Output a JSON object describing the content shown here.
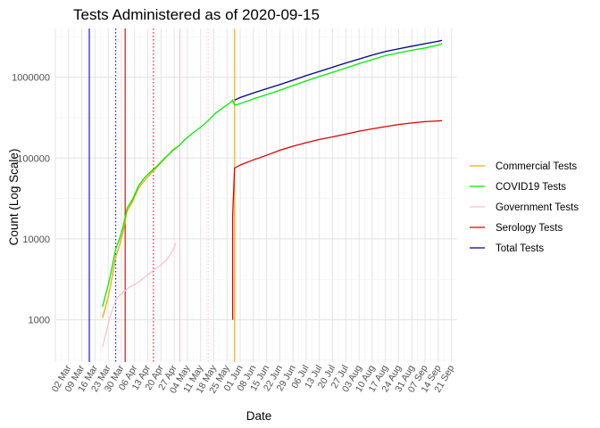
{
  "chart_data": {
    "type": "line",
    "title": "Tests Administered as of 2020-09-15",
    "xlabel": "Date",
    "ylabel": "Count (Log Scale)",
    "y_scale": "log",
    "ylim": [
      300,
      4000000
    ],
    "y_ticks": [
      {
        "value": 1000,
        "label": "1000"
      },
      {
        "value": 10000,
        "label": "10000"
      },
      {
        "value": 100000,
        "label": "100000"
      },
      {
        "value": 1000000,
        "label": "1000000"
      }
    ],
    "xlim": [
      "2020-02-24",
      "2020-09-24"
    ],
    "x_ticks": [
      {
        "date": "2020-03-02",
        "label": "02 Mar"
      },
      {
        "date": "2020-03-09",
        "label": "09 Mar"
      },
      {
        "date": "2020-03-16",
        "label": "16 Mar"
      },
      {
        "date": "2020-03-23",
        "label": "23 Mar"
      },
      {
        "date": "2020-03-30",
        "label": "30 Mar"
      },
      {
        "date": "2020-04-06",
        "label": "06 Apr"
      },
      {
        "date": "2020-04-13",
        "label": "13 Apr"
      },
      {
        "date": "2020-04-20",
        "label": "20 Apr"
      },
      {
        "date": "2020-04-27",
        "label": "27 Apr"
      },
      {
        "date": "2020-05-04",
        "label": "04 May"
      },
      {
        "date": "2020-05-11",
        "label": "11 May"
      },
      {
        "date": "2020-05-18",
        "label": "18 May"
      },
      {
        "date": "2020-05-25",
        "label": "25 May"
      },
      {
        "date": "2020-06-01",
        "label": "01 Jun"
      },
      {
        "date": "2020-06-08",
        "label": "08 Jun"
      },
      {
        "date": "2020-06-15",
        "label": "15 Jun"
      },
      {
        "date": "2020-06-22",
        "label": "22 Jun"
      },
      {
        "date": "2020-06-29",
        "label": "29 Jun"
      },
      {
        "date": "2020-07-06",
        "label": "06 Jul"
      },
      {
        "date": "2020-07-13",
        "label": "13 Jul"
      },
      {
        "date": "2020-07-20",
        "label": "20 Jul"
      },
      {
        "date": "2020-07-27",
        "label": "27 Jul"
      },
      {
        "date": "2020-08-03",
        "label": "03 Aug"
      },
      {
        "date": "2020-08-10",
        "label": "10 Aug"
      },
      {
        "date": "2020-08-17",
        "label": "17 Aug"
      },
      {
        "date": "2020-08-24",
        "label": "24 Aug"
      },
      {
        "date": "2020-08-31",
        "label": "31 Aug"
      },
      {
        "date": "2020-09-07",
        "label": "07 Sep"
      },
      {
        "date": "2020-09-14",
        "label": "14 Sep"
      },
      {
        "date": "2020-09-21",
        "label": "21 Sep"
      }
    ],
    "grid": true,
    "legend_position": "right",
    "vlines": [
      {
        "date": "2020-03-13",
        "color": "#0000ff",
        "style": "solid"
      },
      {
        "date": "2020-03-27",
        "color": "#0000ff",
        "style": "dotted"
      },
      {
        "date": "2020-04-01",
        "color": "#cc0000",
        "style": "solid"
      },
      {
        "date": "2020-04-16",
        "color": "#ff0000",
        "style": "dotted"
      },
      {
        "date": "2020-04-30",
        "color": "#ffc0cb",
        "style": "solid"
      },
      {
        "date": "2020-05-15",
        "color": "#ffc0cb",
        "style": "dotted"
      },
      {
        "date": "2020-05-29",
        "color": "#ffa500",
        "style": "solid"
      }
    ],
    "series": [
      {
        "name": "Commercial Tests",
        "color": "#ffa500",
        "points": [
          [
            "2020-03-20",
            1050
          ],
          [
            "2020-03-23",
            1900
          ],
          [
            "2020-03-25",
            3300
          ],
          [
            "2020-03-27",
            6000
          ],
          [
            "2020-03-29",
            8300
          ],
          [
            "2020-03-31",
            12500
          ],
          [
            "2020-04-02",
            22000
          ],
          [
            "2020-04-05",
            29000
          ],
          [
            "2020-04-08",
            42000
          ],
          [
            "2020-04-11",
            52000
          ],
          [
            "2020-04-14",
            62000
          ],
          [
            "2020-04-18",
            78000
          ],
          [
            "2020-04-22",
            98000
          ],
          [
            "2020-04-26",
            125000
          ],
          [
            "2020-04-28",
            135000
          ],
          [
            "2020-04-29",
            140000
          ]
        ]
      },
      {
        "name": "COVID19 Tests",
        "color": "#00ee00",
        "points": [
          [
            "2020-03-20",
            1450
          ],
          [
            "2020-03-23",
            2700
          ],
          [
            "2020-03-25",
            4400
          ],
          [
            "2020-03-27",
            7500
          ],
          [
            "2020-03-29",
            10000
          ],
          [
            "2020-03-31",
            14500
          ],
          [
            "2020-04-02",
            24000
          ],
          [
            "2020-04-05",
            31000
          ],
          [
            "2020-04-08",
            45000
          ],
          [
            "2020-04-11",
            56000
          ],
          [
            "2020-04-14",
            66000
          ],
          [
            "2020-04-18",
            80000
          ],
          [
            "2020-04-22",
            100000
          ],
          [
            "2020-04-26",
            122000
          ],
          [
            "2020-04-30",
            145000
          ],
          [
            "2020-05-03",
            172000
          ],
          [
            "2020-05-07",
            205000
          ],
          [
            "2020-05-11",
            240000
          ],
          [
            "2020-05-15",
            290000
          ],
          [
            "2020-05-19",
            360000
          ],
          [
            "2020-05-23",
            420000
          ],
          [
            "2020-05-27",
            490000
          ],
          [
            "2020-05-28",
            520000
          ],
          [
            "2020-05-29",
            450000
          ],
          [
            "2020-06-01",
            470000
          ],
          [
            "2020-06-08",
            540000
          ],
          [
            "2020-06-15",
            610000
          ],
          [
            "2020-06-22",
            690000
          ],
          [
            "2020-06-29",
            790000
          ],
          [
            "2020-07-06",
            900000
          ],
          [
            "2020-07-13",
            1020000
          ],
          [
            "2020-07-20",
            1150000
          ],
          [
            "2020-07-27",
            1300000
          ],
          [
            "2020-08-03",
            1470000
          ],
          [
            "2020-08-10",
            1650000
          ],
          [
            "2020-08-17",
            1850000
          ],
          [
            "2020-08-24",
            2000000
          ],
          [
            "2020-08-31",
            2150000
          ],
          [
            "2020-09-07",
            2300000
          ],
          [
            "2020-09-14",
            2500000
          ],
          [
            "2020-09-16",
            2600000
          ]
        ]
      },
      {
        "name": "Government Tests",
        "color": "#ffc0cb",
        "points": [
          [
            "2020-03-20",
            460
          ],
          [
            "2020-03-22",
            700
          ],
          [
            "2020-03-24",
            1100
          ],
          [
            "2020-03-26",
            1500
          ],
          [
            "2020-03-28",
            1900
          ],
          [
            "2020-03-31",
            2200
          ],
          [
            "2020-04-03",
            2500
          ],
          [
            "2020-04-07",
            2800
          ],
          [
            "2020-04-11",
            3300
          ],
          [
            "2020-04-15",
            3900
          ],
          [
            "2020-04-19",
            4600
          ],
          [
            "2020-04-23",
            5500
          ],
          [
            "2020-04-26",
            7000
          ],
          [
            "2020-04-28",
            9000
          ]
        ]
      },
      {
        "name": "Serology Tests",
        "color": "#dd0000",
        "points": [
          [
            "2020-05-28",
            1000
          ],
          [
            "2020-05-28",
            19000
          ],
          [
            "2020-05-29",
            75000
          ],
          [
            "2020-06-01",
            82000
          ],
          [
            "2020-06-08",
            95000
          ],
          [
            "2020-06-15",
            108000
          ],
          [
            "2020-06-22",
            125000
          ],
          [
            "2020-06-29",
            140000
          ],
          [
            "2020-07-06",
            155000
          ],
          [
            "2020-07-13",
            170000
          ],
          [
            "2020-07-20",
            183000
          ],
          [
            "2020-07-27",
            198000
          ],
          [
            "2020-08-03",
            215000
          ],
          [
            "2020-08-10",
            230000
          ],
          [
            "2020-08-17",
            245000
          ],
          [
            "2020-08-24",
            260000
          ],
          [
            "2020-08-31",
            272000
          ],
          [
            "2020-09-07",
            282000
          ],
          [
            "2020-09-14",
            288000
          ],
          [
            "2020-09-16",
            290000
          ]
        ]
      },
      {
        "name": "Total Tests",
        "color": "#00008b",
        "points": [
          [
            "2020-05-29",
            520000
          ],
          [
            "2020-06-01",
            560000
          ],
          [
            "2020-06-08",
            640000
          ],
          [
            "2020-06-15",
            720000
          ],
          [
            "2020-06-22",
            810000
          ],
          [
            "2020-06-29",
            920000
          ],
          [
            "2020-07-06",
            1050000
          ],
          [
            "2020-07-13",
            1180000
          ],
          [
            "2020-07-20",
            1330000
          ],
          [
            "2020-07-27",
            1500000
          ],
          [
            "2020-08-03",
            1680000
          ],
          [
            "2020-08-10",
            1880000
          ],
          [
            "2020-08-17",
            2080000
          ],
          [
            "2020-08-24",
            2250000
          ],
          [
            "2020-08-31",
            2420000
          ],
          [
            "2020-09-07",
            2600000
          ],
          [
            "2020-09-14",
            2780000
          ],
          [
            "2020-09-16",
            2850000
          ]
        ]
      }
    ]
  }
}
